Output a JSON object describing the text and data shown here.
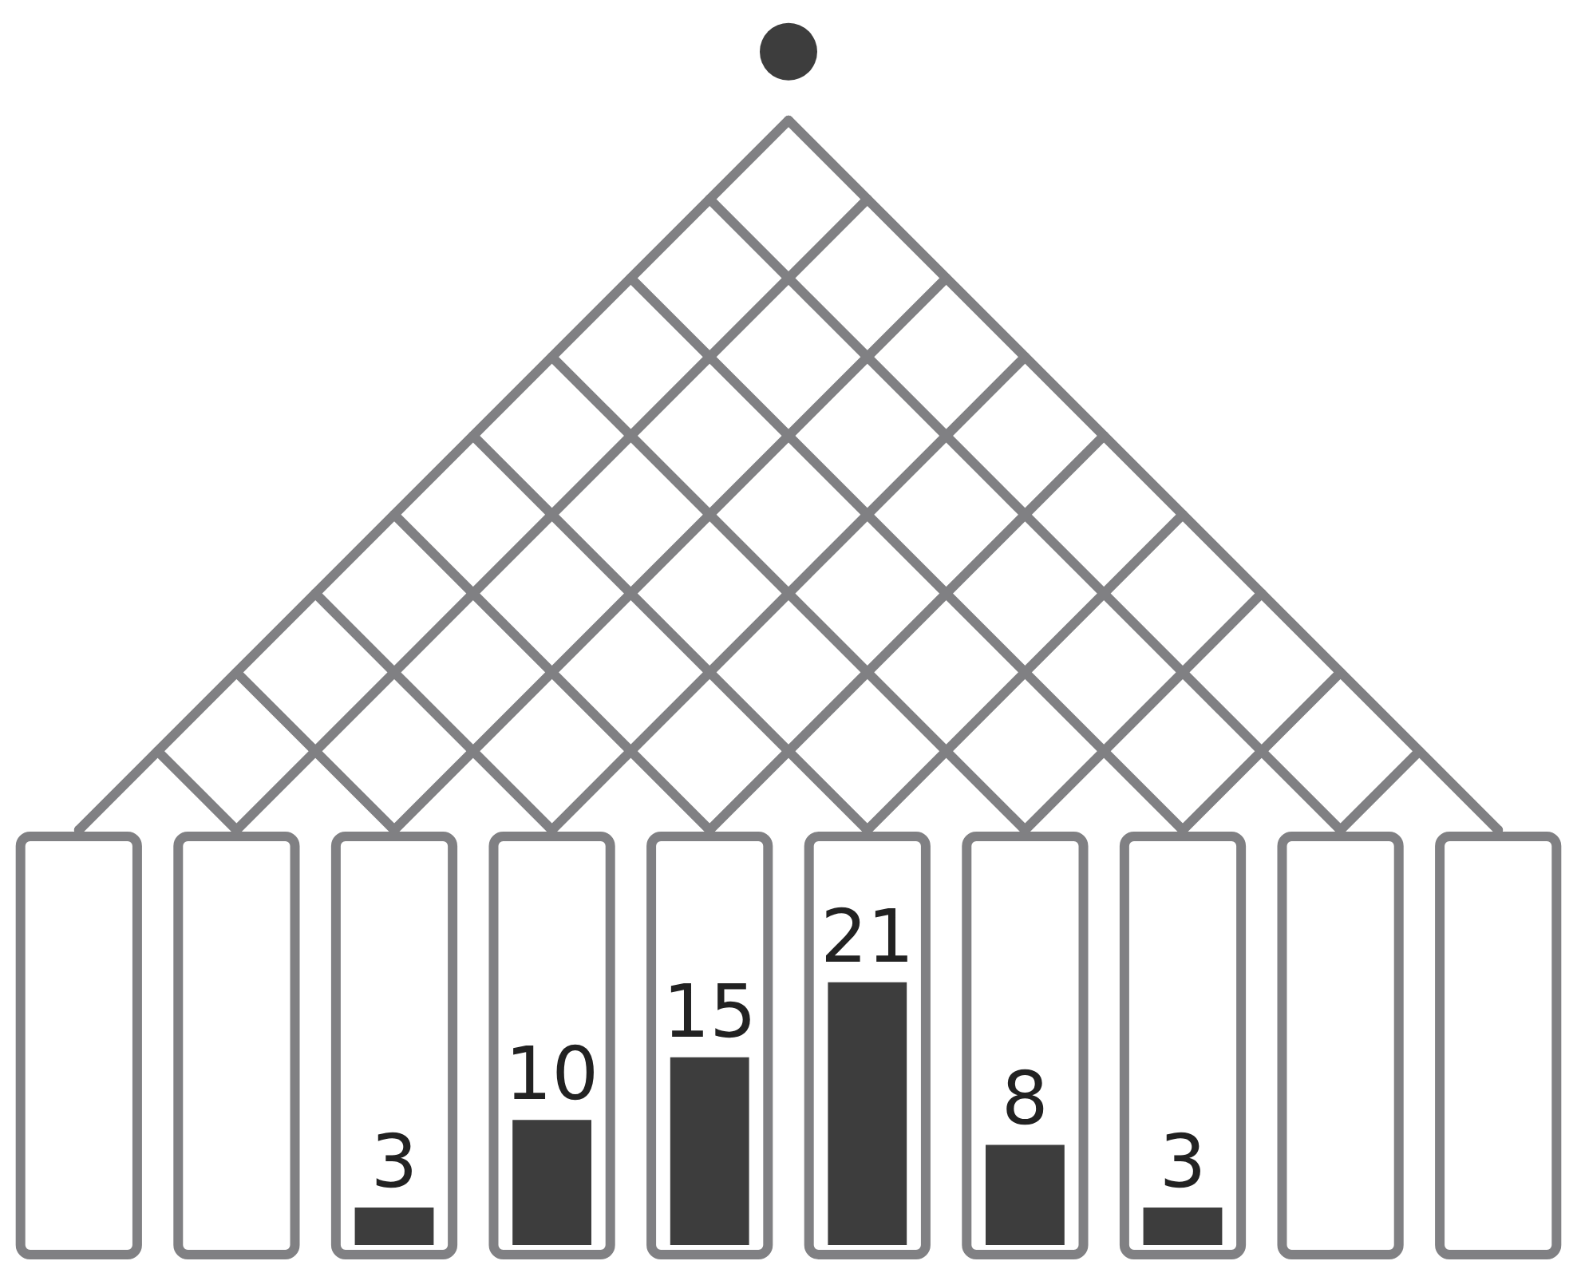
{
  "chart_data": {
    "type": "bar",
    "categories": [
      null,
      null,
      null,
      null,
      null,
      null
    ],
    "values": [
      3,
      10,
      15,
      21,
      8,
      3
    ],
    "data_labels": true,
    "color": "#3d3d3d",
    "tick_labels": false
  }
}
